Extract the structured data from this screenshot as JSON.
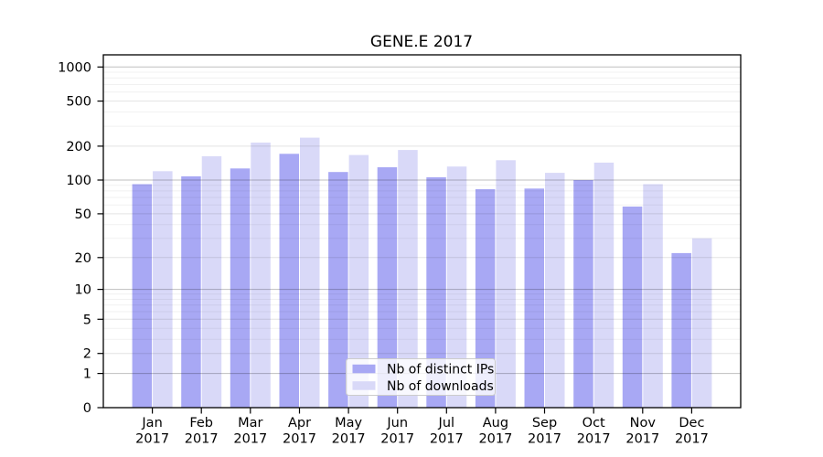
{
  "title": "GENE.E 2017",
  "chart_data": {
    "type": "bar",
    "title": "GENE.E 2017",
    "x_categories": [
      "Jan 2017",
      "Feb 2017",
      "Mar 2017",
      "Apr 2017",
      "May 2017",
      "Jun 2017",
      "Jul 2017",
      "Aug 2017",
      "Sep 2017",
      "Oct 2017",
      "Nov 2017",
      "Dec 2017"
    ],
    "series": [
      {
        "name": "Nb of distinct IPs",
        "color": "#a8a8f4",
        "values": [
          92,
          108,
          127,
          171,
          118,
          130,
          106,
          83,
          84,
          100,
          58,
          22
        ]
      },
      {
        "name": "Nb of downloads",
        "color": "#d9d9f8",
        "values": [
          120,
          163,
          215,
          238,
          167,
          185,
          132,
          150,
          116,
          143,
          92,
          30
        ]
      }
    ],
    "y_scale": "symlog",
    "y_range": [
      0,
      1000
    ],
    "y_ticks": [
      0,
      1,
      2,
      5,
      10,
      20,
      50,
      100,
      200,
      500,
      1000
    ],
    "grid": "on",
    "legend_position": "lower center",
    "colors": {
      "axis": "#000000",
      "grid_major": "rgba(0,0,0,0.25)",
      "grid_labeled": "rgba(0,0,0,0.11)",
      "grid_minor": "rgba(0,0,0,0.055)"
    }
  }
}
